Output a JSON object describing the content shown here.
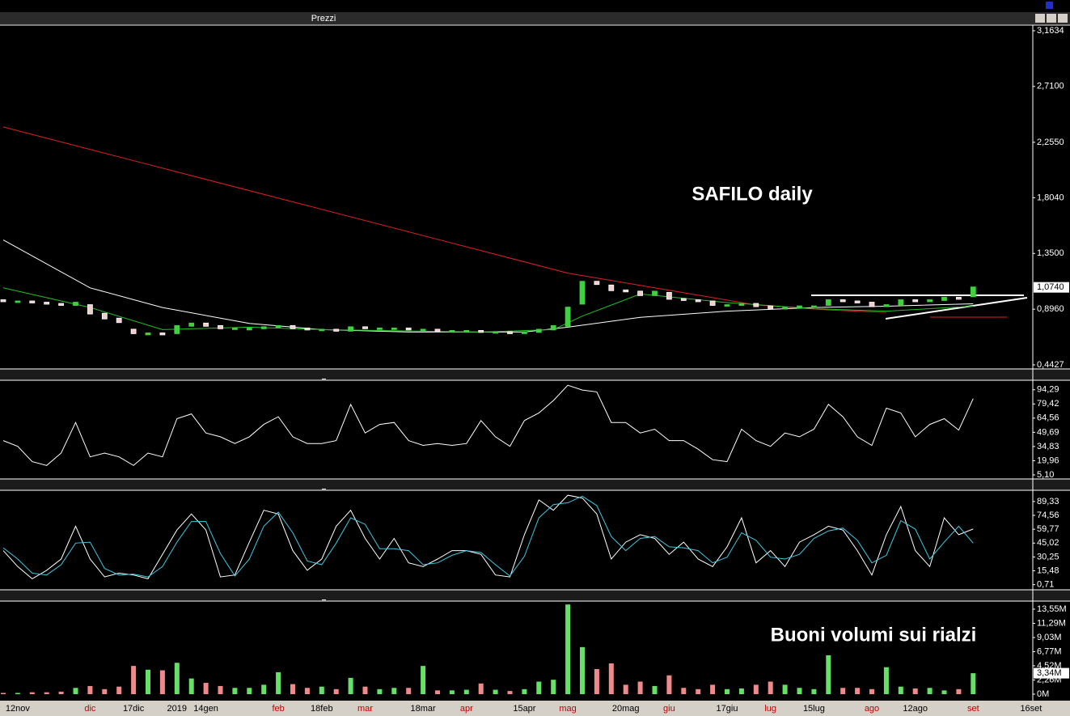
{
  "window_title": "Prezzi",
  "chart_data": [
    {
      "type": "candlestick",
      "annotation": "SAFILO daily",
      "open": [
        0.97,
        0.96,
        0.96,
        0.95,
        0.94,
        0.93,
        0.93,
        0.86,
        0.82,
        0.73,
        0.69,
        0.7,
        0.7,
        0.76,
        0.78,
        0.76,
        0.74,
        0.73,
        0.74,
        0.75,
        0.76,
        0.74,
        0.73,
        0.73,
        0.72,
        0.75,
        0.74,
        0.74,
        0.74,
        0.73,
        0.73,
        0.72,
        0.72,
        0.72,
        0.71,
        0.71,
        0.7,
        0.71,
        0.73,
        0.76,
        0.94,
        1.12,
        1.09,
        1.05,
        1.04,
        1.01,
        1.03,
        0.98,
        0.97,
        0.96,
        0.93,
        0.93,
        0.94,
        0.92,
        0.9,
        0.91,
        0.92,
        0.93,
        0.97,
        0.96,
        0.95,
        0.92,
        0.93,
        0.97,
        0.96,
        0.97,
        0.99,
        1.0,
        null,
        null,
        null,
        null
      ],
      "close": [
        0.96,
        0.96,
        0.95,
        0.94,
        0.93,
        0.95,
        0.86,
        0.82,
        0.79,
        0.7,
        0.7,
        0.69,
        0.76,
        0.78,
        0.76,
        0.74,
        0.74,
        0.74,
        0.75,
        0.76,
        0.74,
        0.73,
        0.73,
        0.72,
        0.75,
        0.74,
        0.74,
        0.74,
        0.73,
        0.73,
        0.72,
        0.72,
        0.72,
        0.71,
        0.71,
        0.7,
        0.71,
        0.73,
        0.76,
        0.91,
        1.12,
        1.1,
        1.05,
        1.04,
        1.01,
        1.04,
        0.98,
        0.97,
        0.96,
        0.93,
        0.93,
        0.94,
        0.92,
        0.9,
        0.91,
        0.92,
        0.92,
        0.97,
        0.96,
        0.95,
        0.92,
        0.93,
        0.97,
        0.96,
        0.97,
        0.99,
        0.98,
        1.074,
        null,
        null,
        null,
        null
      ],
      "up_color": "#3fd23f",
      "down_color": "#f4cccc",
      "overlays": [
        {
          "color": "#e02020",
          "x": [
            0,
            10,
            20,
            30,
            39,
            45,
            52,
            57,
            61
          ],
          "values": [
            2.38,
            2.075,
            1.77,
            1.465,
            1.19,
            1.07,
            0.93,
            0.89,
            0.87
          ]
        },
        {
          "color": "#ffffff",
          "x": [
            0,
            6,
            11,
            17,
            22,
            28,
            36,
            39,
            44,
            50,
            56,
            61,
            67
          ],
          "values": [
            1.46,
            1.07,
            0.91,
            0.78,
            0.73,
            0.71,
            0.71,
            0.75,
            0.83,
            0.88,
            0.91,
            0.92,
            0.94
          ]
        },
        {
          "color": "#20c020",
          "x": [
            0,
            6,
            11,
            17,
            22,
            33,
            38,
            40,
            44,
            50,
            56,
            61,
            67
          ],
          "values": [
            1.07,
            0.91,
            0.73,
            0.75,
            0.73,
            0.71,
            0.73,
            0.84,
            1.02,
            0.95,
            0.9,
            0.88,
            0.92
          ]
        }
      ],
      "ylim": [
        0.4427,
        3.1634
      ],
      "yticks": [
        {
          "value": 3.1634,
          "label": "3,1634"
        },
        {
          "value": 2.71,
          "label": "2,7100"
        },
        {
          "value": 2.255,
          "label": "2,2550"
        },
        {
          "value": 1.804,
          "label": "1,8040"
        },
        {
          "value": 1.35,
          "label": "1,3500"
        },
        {
          "value": 0.896,
          "label": "0,8960"
        },
        {
          "value": 0.4427,
          "label": "0,4427"
        }
      ],
      "last_label": {
        "value": 1.074,
        "label": "1,0740"
      }
    },
    {
      "type": "line",
      "series": [
        {
          "color": "#ffffff",
          "values": [
            41,
            35,
            19,
            15,
            28,
            60,
            24,
            28,
            24,
            15,
            28,
            24,
            64,
            69,
            49,
            45,
            38,
            45,
            58,
            66,
            45,
            38,
            38,
            41,
            79,
            49,
            58,
            60,
            41,
            36,
            38,
            36,
            38,
            62,
            45,
            35,
            62,
            70,
            83,
            99,
            94,
            92,
            60,
            60,
            49,
            53,
            41,
            41,
            32,
            21,
            19,
            53,
            41,
            35,
            49,
            45,
            53,
            79,
            66,
            45,
            36,
            75,
            70,
            45,
            58,
            64,
            52,
            85,
            null,
            null,
            null,
            null
          ]
        }
      ],
      "ylim": [
        0,
        100
      ],
      "yticks": [
        {
          "value": 94.29,
          "label": "94,29"
        },
        {
          "value": 79.42,
          "label": "79,42"
        },
        {
          "value": 64.56,
          "label": "64,56"
        },
        {
          "value": 49.69,
          "label": "49,69"
        },
        {
          "value": 34.83,
          "label": "34,83"
        },
        {
          "value": 19.96,
          "label": "19,96"
        },
        {
          "value": 5.1,
          "label": "5,10"
        }
      ]
    },
    {
      "type": "line",
      "series": [
        {
          "color": "#ffffff",
          "values": [
            37,
            20,
            7,
            16,
            28,
            63,
            28,
            9,
            13,
            11,
            7,
            33,
            59,
            76,
            59,
            9,
            11,
            46,
            80,
            76,
            37,
            16,
            28,
            63,
            80,
            50,
            28,
            50,
            24,
            20,
            28,
            37,
            37,
            33,
            11,
            9,
            54,
            91,
            80,
            96,
            93,
            76,
            28,
            46,
            54,
            50,
            33,
            46,
            28,
            20,
            41,
            72,
            24,
            37,
            20,
            46,
            54,
            63,
            59,
            37,
            11,
            54,
            84,
            37,
            20,
            72,
            54,
            60,
            null,
            null,
            null,
            null
          ]
        },
        {
          "color": "#40c8e0",
          "values": [
            40,
            28,
            13,
            11,
            22,
            45,
            46,
            18,
            11,
            12,
            9,
            20,
            46,
            68,
            68,
            34,
            10,
            28,
            63,
            78,
            56,
            26,
            22,
            45,
            72,
            65,
            39,
            39,
            37,
            22,
            24,
            32,
            37,
            35,
            22,
            10,
            31,
            72,
            86,
            88,
            95,
            85,
            52,
            37,
            50,
            52,
            41,
            40,
            37,
            24,
            30,
            56,
            48,
            30,
            28,
            33,
            50,
            58,
            61,
            48,
            24,
            32,
            69,
            60,
            28,
            46,
            63,
            45,
            null,
            null,
            null,
            null
          ]
        }
      ],
      "ylim": [
        0,
        100
      ],
      "yticks": [
        {
          "value": 89.33,
          "label": "89,33"
        },
        {
          "value": 74.56,
          "label": "74,56"
        },
        {
          "value": 59.77,
          "label": "59,77"
        },
        {
          "value": 45.02,
          "label": "45,02"
        },
        {
          "value": 30.25,
          "label": "30,25"
        },
        {
          "value": 15.48,
          "label": "15,48"
        },
        {
          "value": 0.71,
          "label": "0,71"
        }
      ]
    },
    {
      "type": "bar",
      "annotation": "Buoni volumi sui rialzi",
      "categories": [
        null,
        "12nov",
        null,
        null,
        null,
        null,
        "dic",
        null,
        null,
        "17dic",
        null,
        null,
        "2019",
        null,
        "14gen",
        null,
        null,
        null,
        null,
        "feb",
        null,
        null,
        "18feb",
        null,
        null,
        "mar",
        null,
        null,
        null,
        "18mar",
        null,
        null,
        "apr",
        null,
        null,
        null,
        "15apr",
        null,
        null,
        "mag",
        null,
        null,
        null,
        "20mag",
        null,
        null,
        "giu",
        null,
        null,
        null,
        "17giu",
        null,
        null,
        "lug",
        null,
        null,
        "15lug",
        null,
        null,
        null,
        "ago",
        null,
        null,
        "12ago",
        null,
        null,
        null,
        "set",
        null,
        null,
        null,
        "16set"
      ],
      "values": [
        0.2,
        0.2,
        0.3,
        0.3,
        0.4,
        1.0,
        1.3,
        0.8,
        1.2,
        4.5,
        3.9,
        3.8,
        5.0,
        2.5,
        1.8,
        1.3,
        1.0,
        1.0,
        1.5,
        3.5,
        1.6,
        1.0,
        1.2,
        0.8,
        2.6,
        1.2,
        0.8,
        1.0,
        1.0,
        4.5,
        0.6,
        0.6,
        0.7,
        1.7,
        0.7,
        0.5,
        0.8,
        2.0,
        2.3,
        14.3,
        7.5,
        4.0,
        4.9,
        1.5,
        2.0,
        1.3,
        3.0,
        1.0,
        0.8,
        1.5,
        0.8,
        0.9,
        1.5,
        2.0,
        1.5,
        1.0,
        0.8,
        6.2,
        1.0,
        1.0,
        0.8,
        4.3,
        1.2,
        0.9,
        1.0,
        0.6,
        0.8,
        3.34,
        null,
        null,
        null,
        null
      ],
      "up_color": "#66e066",
      "down_color": "#f08a8a",
      "ylim": [
        0,
        14.5
      ],
      "yticks": [
        {
          "value": 13.55,
          "label": "13,55M"
        },
        {
          "value": 11.29,
          "label": "11,29M"
        },
        {
          "value": 9.03,
          "label": "9,03M"
        },
        {
          "value": 6.77,
          "label": "6,77M"
        },
        {
          "value": 4.52,
          "label": "4,52M"
        },
        {
          "value": 2.26,
          "label": "2,26M"
        },
        {
          "value": 0,
          "label": "0M"
        }
      ],
      "last_label": {
        "value": 3.34,
        "label": "3,34M"
      }
    }
  ]
}
